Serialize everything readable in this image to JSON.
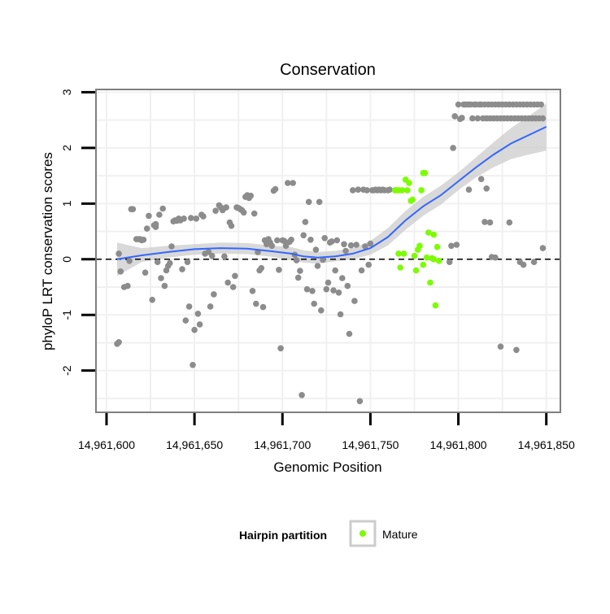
{
  "chart_data": {
    "type": "scatter",
    "title": "Conservation",
    "xlabel": "Genomic Position",
    "ylabel": "phyloP LRT conservation scores",
    "xlim": [
      14961594,
      14961858
    ],
    "ylim": [
      -2.75,
      3.05
    ],
    "x_ticks": [
      14961600,
      14961650,
      14961700,
      14961750,
      14961800,
      14961850
    ],
    "x_tick_labels": [
      "14,961,600",
      "14,961,650",
      "14,961,700",
      "14,961,750",
      "14,961,800",
      "14,961,850"
    ],
    "y_ticks": [
      -2,
      -1,
      0,
      1,
      2,
      3
    ],
    "y_tick_labels": [
      "-2",
      "-1",
      "0",
      "1",
      "2",
      "3"
    ],
    "grid": true,
    "reference_line": {
      "y": 0,
      "style": "dashed"
    },
    "legend": {
      "title": "Hairpin partition",
      "placement": "bottom",
      "entries": [
        {
          "label": "Mature",
          "color": "#7cfc00"
        }
      ]
    },
    "colors": {
      "other": "#8c8c8c",
      "mature": "#7cfc00",
      "smooth_line": "#3366ff",
      "ribbon": "#cccccc",
      "panel_border": "#7f7f7f"
    },
    "series": [
      {
        "color": "#8c8c8c",
        "points": [
          [
            14961606,
            -1.52
          ],
          [
            14961607,
            -1.49
          ],
          [
            14961607,
            0.1
          ],
          [
            14961608,
            -0.22
          ],
          [
            14961610,
            -0.5
          ],
          [
            14961612,
            -0.48
          ],
          [
            14961613,
            -0.03
          ],
          [
            14961614,
            0.9
          ],
          [
            14961615,
            0.9
          ],
          [
            14961617,
            0.36
          ],
          [
            14961618,
            0.36
          ],
          [
            14961619,
            0.36
          ],
          [
            14961620,
            0.34
          ],
          [
            14961621,
            0.35
          ],
          [
            14961622,
            -0.24
          ],
          [
            14961623,
            0.55
          ],
          [
            14961624,
            0.78
          ],
          [
            14961626,
            -0.73
          ],
          [
            14961627,
            0.61
          ],
          [
            14961628,
            0.63
          ],
          [
            14961628,
            0.58
          ],
          [
            14961629,
            -0.05
          ],
          [
            14961630,
            0.8
          ],
          [
            14961631,
            -0.34
          ],
          [
            14961632,
            0.91
          ],
          [
            14961633,
            -0.48
          ],
          [
            14961634,
            -0.2
          ],
          [
            14961635,
            -0.12
          ],
          [
            14961636,
            -0.07
          ],
          [
            14961637,
            0.23
          ],
          [
            14961638,
            0.68
          ],
          [
            14961639,
            0.7
          ],
          [
            14961640,
            0.69
          ],
          [
            14961641,
            0.73
          ],
          [
            14961642,
            0.7
          ],
          [
            14961643,
            -0.18
          ],
          [
            14961644,
            0.73
          ],
          [
            14961645,
            -1.1
          ],
          [
            14961646,
            -0.05
          ],
          [
            14961647,
            -0.85
          ],
          [
            14961648,
            0.74
          ],
          [
            14961649,
            -1.9
          ],
          [
            14961650,
            -1.27
          ],
          [
            14961651,
            0.73
          ],
          [
            14961652,
            -0.98
          ],
          [
            14961653,
            -1.17
          ],
          [
            14961654,
            0.8
          ],
          [
            14961655,
            0.77
          ],
          [
            14961656,
            0.1
          ],
          [
            14961658,
            0.13
          ],
          [
            14961659,
            -0.85
          ],
          [
            14961660,
            0.06
          ],
          [
            14961661,
            -0.63
          ],
          [
            14961662,
            0.87
          ],
          [
            14961664,
            0.97
          ],
          [
            14961665,
            0.93
          ],
          [
            14961666,
            0.88
          ],
          [
            14961667,
            0.05
          ],
          [
            14961668,
            0.93
          ],
          [
            14961669,
            -0.42
          ],
          [
            14961670,
            0.66
          ],
          [
            14961671,
            0.6
          ],
          [
            14961672,
            -0.5
          ],
          [
            14961673,
            -0.3
          ],
          [
            14961674,
            0.93
          ],
          [
            14961675,
            0.92
          ],
          [
            14961676,
            0.9
          ],
          [
            14961677,
            0.88
          ],
          [
            14961678,
            0.84
          ],
          [
            14961679,
            1.12
          ],
          [
            14961680,
            1.15
          ],
          [
            14961681,
            1.1
          ],
          [
            14961682,
            1.14
          ],
          [
            14961683,
            -0.57
          ],
          [
            14961684,
            0.82
          ],
          [
            14961685,
            -0.8
          ],
          [
            14961686,
            0.13
          ],
          [
            14961687,
            -0.2
          ],
          [
            14961688,
            -0.16
          ],
          [
            14961689,
            -0.86
          ],
          [
            14961690,
            0.34
          ],
          [
            14961691,
            0.27
          ],
          [
            14961692,
            0.36
          ],
          [
            14961693,
            0.3
          ],
          [
            14961694,
            0.24
          ],
          [
            14961695,
            1.23
          ],
          [
            14961696,
            1.26
          ],
          [
            14961697,
            0.34
          ],
          [
            14961698,
            -0.19
          ],
          [
            14961699,
            -1.6
          ],
          [
            14961700,
            0.34
          ],
          [
            14961701,
            0.33
          ],
          [
            14961702,
            0.24
          ],
          [
            14961703,
            1.37
          ],
          [
            14961704,
            0.31
          ],
          [
            14961705,
            0.35
          ],
          [
            14961706,
            1.37
          ],
          [
            14961707,
            0.08
          ],
          [
            14961708,
            -0.02
          ],
          [
            14961709,
            -0.33
          ],
          [
            14961710,
            -0.21
          ],
          [
            14961711,
            -2.44
          ],
          [
            14961712,
            0.43
          ],
          [
            14961713,
            0.67
          ],
          [
            14961714,
            -0.54
          ],
          [
            14961715,
            1.03
          ],
          [
            14961716,
            0.35
          ],
          [
            14961717,
            -0.57
          ],
          [
            14961718,
            -0.8
          ],
          [
            14961719,
            0.17
          ],
          [
            14961720,
            -0.12
          ],
          [
            14961721,
            1.03
          ],
          [
            14961722,
            -0.92
          ],
          [
            14961723,
            -0.01
          ],
          [
            14961724,
            0.38
          ],
          [
            14961725,
            -0.54
          ],
          [
            14961726,
            -0.42
          ],
          [
            14961727,
            0.3
          ],
          [
            14961728,
            0.32
          ],
          [
            14961729,
            -0.56
          ],
          [
            14961730,
            -0.2
          ],
          [
            14961731,
            0.34
          ],
          [
            14961732,
            -0.6
          ],
          [
            14961733,
            -0.99
          ],
          [
            14961734,
            -0.34
          ],
          [
            14961735,
            0.27
          ],
          [
            14961736,
            0.15
          ],
          [
            14961737,
            -0.48
          ],
          [
            14961738,
            -1.34
          ],
          [
            14961739,
            0.25
          ],
          [
            14961740,
            1.24
          ],
          [
            14961741,
            -0.75
          ],
          [
            14961742,
            0.26
          ],
          [
            14961743,
            1.25
          ],
          [
            14961744,
            -2.55
          ],
          [
            14961745,
            -0.2
          ],
          [
            14961746,
            1.25
          ],
          [
            14961747,
            0.23
          ],
          [
            14961748,
            1.24
          ],
          [
            14961749,
            -0.1
          ],
          [
            14961750,
            0.28
          ],
          [
            14961751,
            1.24
          ],
          [
            14961752,
            1.24
          ],
          [
            14961753,
            1.25
          ],
          [
            14961754,
            1.24
          ],
          [
            14961755,
            1.25
          ],
          [
            14961756,
            1.24
          ],
          [
            14961757,
            1.25
          ],
          [
            14961758,
            1.24
          ],
          [
            14961760,
            1.24
          ],
          [
            14961761,
            1.25
          ],
          [
            14961795,
            -0.05
          ],
          [
            14961796,
            0.24
          ],
          [
            14961797,
            2.0
          ],
          [
            14961798,
            2.57
          ],
          [
            14961799,
            0.26
          ],
          [
            14961800,
            2.78
          ],
          [
            14961801,
            2.52
          ],
          [
            14961802,
            2.54
          ],
          [
            14961803,
            2.78
          ],
          [
            14961804,
            2.78
          ],
          [
            14961805,
            2.78
          ],
          [
            14961806,
            1.25
          ],
          [
            14961806,
            2.78
          ],
          [
            14961807,
            2.78
          ],
          [
            14961808,
            2.53
          ],
          [
            14961809,
            2.78
          ],
          [
            14961810,
            2.78
          ],
          [
            14961811,
            2.53
          ],
          [
            14961812,
            2.78
          ],
          [
            14961813,
            1.44
          ],
          [
            14961813,
            2.78
          ],
          [
            14961814,
            2.53
          ],
          [
            14961815,
            0.67
          ],
          [
            14961815,
            2.78
          ],
          [
            14961816,
            2.53
          ],
          [
            14961816,
            1.27
          ],
          [
            14961817,
            2.78
          ],
          [
            14961818,
            0.66
          ],
          [
            14961818,
            2.53
          ],
          [
            14961819,
            0.04
          ],
          [
            14961819,
            2.78
          ],
          [
            14961820,
            2.53
          ],
          [
            14961821,
            0.03
          ],
          [
            14961821,
            2.78
          ],
          [
            14961822,
            2.53
          ],
          [
            14961823,
            2.78
          ],
          [
            14961824,
            -1.57
          ],
          [
            14961824,
            2.53
          ],
          [
            14961825,
            2.78
          ],
          [
            14961826,
            2.53
          ],
          [
            14961827,
            2.78
          ],
          [
            14961828,
            2.53
          ],
          [
            14961829,
            0.66
          ],
          [
            14961829,
            2.78
          ],
          [
            14961830,
            2.53
          ],
          [
            14961831,
            2.78
          ],
          [
            14961832,
            2.53
          ],
          [
            14961833,
            -1.63
          ],
          [
            14961833,
            2.78
          ],
          [
            14961834,
            2.53
          ],
          [
            14961835,
            -0.05
          ],
          [
            14961835,
            2.78
          ],
          [
            14961836,
            2.53
          ],
          [
            14961837,
            -0.1
          ],
          [
            14961837,
            2.78
          ],
          [
            14961838,
            2.53
          ],
          [
            14961839,
            2.78
          ],
          [
            14961840,
            2.53
          ],
          [
            14961841,
            2.78
          ],
          [
            14961842,
            2.53
          ],
          [
            14961843,
            -0.05
          ],
          [
            14961843,
            2.78
          ],
          [
            14961844,
            2.53
          ],
          [
            14961845,
            2.78
          ],
          [
            14961846,
            2.53
          ],
          [
            14961847,
            2.78
          ],
          [
            14961848,
            0.2
          ],
          [
            14961848,
            2.53
          ]
        ]
      },
      {
        "name": "Mature",
        "color": "#7cfc00",
        "points": [
          [
            14961764,
            1.24
          ],
          [
            14961765,
            1.24
          ],
          [
            14961766,
            1.24
          ],
          [
            14961766,
            0.1
          ],
          [
            14961767,
            -0.15
          ],
          [
            14961768,
            1.24
          ],
          [
            14961769,
            0.1
          ],
          [
            14961770,
            1.43
          ],
          [
            14961771,
            1.24
          ],
          [
            14961772,
            1.37
          ],
          [
            14961773,
            1.05
          ],
          [
            14961774,
            1.07
          ],
          [
            14961775,
            0.06
          ],
          [
            14961776,
            -0.2
          ],
          [
            14961777,
            0.17
          ],
          [
            14961778,
            0.24
          ],
          [
            14961779,
            1.24
          ],
          [
            14961780,
            1.55
          ],
          [
            14961781,
            1.55
          ],
          [
            14961782,
            0.03
          ],
          [
            14961783,
            0.48
          ],
          [
            14961784,
            -0.42
          ],
          [
            14961785,
            0.02
          ],
          [
            14961786,
            0.44
          ],
          [
            14961787,
            -0.83
          ],
          [
            14961788,
            0.22
          ],
          [
            14961789,
            -0.03
          ],
          [
            14961780,
            -0.1
          ],
          [
            14961786,
            0.0
          ]
        ]
      }
    ],
    "smooth_fit": [
      [
        14961606,
        0.0
      ],
      [
        14961620,
        0.07
      ],
      [
        14961635,
        0.13
      ],
      [
        14961650,
        0.18
      ],
      [
        14961665,
        0.2
      ],
      [
        14961680,
        0.19
      ],
      [
        14961695,
        0.14
      ],
      [
        14961705,
        0.1
      ],
      [
        14961712,
        0.05
      ],
      [
        14961720,
        0.03
      ],
      [
        14961730,
        0.05
      ],
      [
        14961740,
        0.1
      ],
      [
        14961750,
        0.2
      ],
      [
        14961760,
        0.4
      ],
      [
        14961770,
        0.7
      ],
      [
        14961780,
        0.95
      ],
      [
        14961790,
        1.15
      ],
      [
        14961800,
        1.4
      ],
      [
        14961810,
        1.65
      ],
      [
        14961820,
        1.88
      ],
      [
        14961830,
        2.08
      ],
      [
        14961840,
        2.23
      ],
      [
        14961850,
        2.38
      ]
    ],
    "ribbon": [
      [
        14961606,
        -0.3,
        0.3
      ],
      [
        14961620,
        -0.05,
        0.2
      ],
      [
        14961635,
        0.03,
        0.24
      ],
      [
        14961650,
        0.08,
        0.27
      ],
      [
        14961665,
        0.1,
        0.3
      ],
      [
        14961680,
        0.09,
        0.29
      ],
      [
        14961695,
        0.04,
        0.24
      ],
      [
        14961705,
        -0.02,
        0.22
      ],
      [
        14961712,
        -0.06,
        0.16
      ],
      [
        14961720,
        -0.08,
        0.13
      ],
      [
        14961730,
        -0.04,
        0.15
      ],
      [
        14961740,
        0.0,
        0.2
      ],
      [
        14961750,
        0.08,
        0.33
      ],
      [
        14961760,
        0.25,
        0.56
      ],
      [
        14961770,
        0.53,
        0.87
      ],
      [
        14961780,
        0.78,
        1.12
      ],
      [
        14961790,
        0.98,
        1.32
      ],
      [
        14961800,
        1.24,
        1.56
      ],
      [
        14961810,
        1.47,
        1.83
      ],
      [
        14961820,
        1.65,
        2.1
      ],
      [
        14961830,
        1.8,
        2.36
      ],
      [
        14961840,
        1.88,
        2.57
      ],
      [
        14961850,
        1.95,
        2.8
      ]
    ]
  }
}
